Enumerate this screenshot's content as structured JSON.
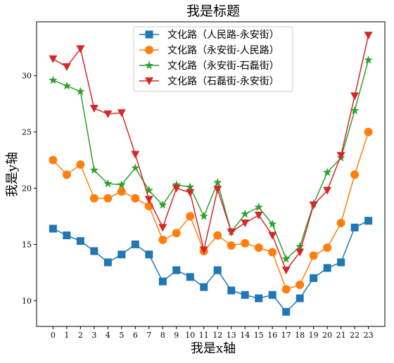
{
  "chart_data": {
    "type": "line",
    "title": "我是标题",
    "xlabel": "我是x轴",
    "ylabel": "我是y轴",
    "x": [
      0,
      1,
      2,
      3,
      4,
      5,
      6,
      7,
      8,
      9,
      10,
      11,
      12,
      13,
      14,
      15,
      16,
      17,
      18,
      19,
      20,
      21,
      22,
      23
    ],
    "xlim": [
      -1.2,
      24.2
    ],
    "ylim": [
      7.7,
      34.8
    ],
    "yticks": [
      10,
      15,
      20,
      25,
      30
    ],
    "grid": false,
    "legend_position": "top-center",
    "series": [
      {
        "name": "文化路（人民路-永安街）",
        "color": "#1f77b4",
        "marker": "square",
        "values": [
          16.4,
          15.8,
          15.3,
          14.4,
          13.4,
          14.1,
          15.0,
          14.1,
          11.7,
          12.7,
          12.1,
          11.2,
          12.7,
          10.9,
          10.5,
          10.2,
          10.5,
          9.0,
          10.2,
          12.0,
          12.9,
          13.4,
          16.5,
          17.1
        ]
      },
      {
        "name": "文化路（永安街-人民路）",
        "color": "#ff7f0e",
        "marker": "circle",
        "values": [
          22.5,
          21.2,
          22.1,
          19.1,
          19.1,
          19.7,
          19.1,
          18.4,
          15.4,
          16.0,
          17.5,
          14.4,
          15.8,
          14.9,
          15.1,
          14.7,
          14.3,
          11.0,
          11.4,
          14.0,
          14.7,
          16.9,
          21.2,
          25.0
        ]
      },
      {
        "name": "文化路（永安街-石磊街）",
        "color": "#2ca02c",
        "marker": "star",
        "values": [
          29.6,
          29.1,
          28.6,
          21.6,
          20.4,
          20.3,
          21.8,
          19.8,
          18.5,
          20.3,
          20.1,
          17.5,
          20.5,
          16.1,
          17.7,
          18.3,
          16.8,
          13.7,
          14.8,
          18.6,
          21.4,
          22.7,
          26.9,
          31.4
        ]
      },
      {
        "name": "文化路（石磊街-永安街）",
        "color": "#d62728",
        "marker": "triangle-down",
        "values": [
          31.5,
          30.8,
          32.4,
          27.1,
          26.6,
          26.7,
          23.0,
          19.0,
          16.5,
          20.0,
          19.6,
          14.5,
          19.9,
          16.1,
          16.9,
          17.6,
          15.8,
          12.7,
          14.3,
          18.5,
          19.8,
          22.9,
          28.2,
          33.6
        ]
      }
    ]
  }
}
